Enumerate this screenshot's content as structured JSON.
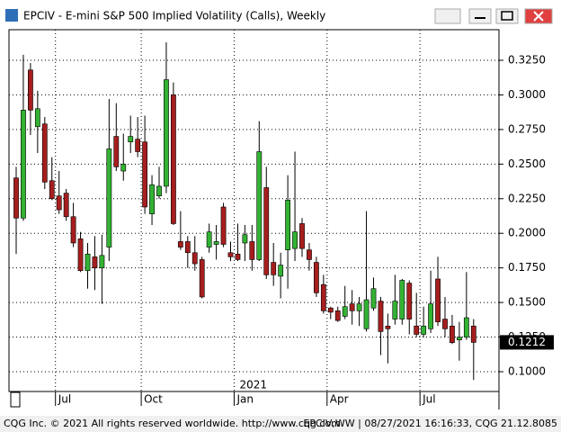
{
  "window": {
    "title": "EPCIV - E-mini S&P 500 Implied Volatility (Calls), Weekly"
  },
  "chart_data": {
    "type": "candlestick",
    "categories": [
      null,
      null,
      null,
      null,
      null,
      null,
      "Jul",
      null,
      null,
      null,
      null,
      null,
      null,
      null,
      null,
      null,
      null,
      null,
      "Oct",
      null,
      null,
      null,
      null,
      null,
      null,
      null,
      null,
      null,
      null,
      null,
      null,
      "Jan",
      null,
      null,
      null,
      null,
      null,
      null,
      null,
      null,
      null,
      null,
      null,
      null,
      "Apr",
      null,
      null,
      null,
      null,
      null,
      null,
      null,
      null,
      null,
      null,
      null,
      null,
      "Jul",
      null,
      null,
      null,
      null,
      null,
      null,
      null
    ],
    "year_label": "2021",
    "open": [
      0.24,
      0.211,
      0.318,
      0.277,
      0.279,
      0.238,
      0.227,
      0.229,
      0.212,
      0.196,
      0.173,
      0.183,
      0.175,
      0.19,
      0.27,
      0.245,
      0.266,
      0.268,
      0.266,
      0.214,
      0.227,
      0.234,
      0.3,
      0.194,
      0.194,
      0.186,
      0.181,
      0.19,
      0.192,
      0.219,
      0.186,
      0.185,
      0.193,
      0.194,
      0.181,
      0.233,
      0.179,
      0.169,
      0.188,
      0.189,
      0.207,
      0.188,
      0.179,
      0.163,
      0.146,
      0.144,
      0.14,
      0.149,
      0.144,
      0.131,
      0.146,
      0.151,
      0.133,
      0.138,
      0.138,
      0.164,
      0.133,
      0.127,
      0.131,
      0.167,
      0.138,
      0.133,
      0.123,
      0.125,
      0.133
    ],
    "high": [
      0.248,
      0.329,
      0.323,
      0.303,
      0.284,
      0.255,
      0.245,
      0.232,
      0.222,
      0.201,
      0.193,
      0.198,
      0.199,
      0.297,
      0.294,
      0.272,
      0.285,
      0.284,
      0.285,
      0.242,
      0.248,
      0.338,
      0.309,
      0.216,
      0.198,
      0.198,
      0.183,
      0.207,
      0.206,
      0.222,
      0.194,
      0.207,
      0.206,
      0.206,
      0.281,
      0.248,
      0.193,
      0.186,
      0.242,
      0.259,
      0.211,
      0.193,
      0.183,
      0.17,
      0.147,
      0.147,
      0.162,
      0.159,
      0.154,
      0.216,
      0.168,
      0.154,
      0.142,
      0.17,
      0.167,
      0.166,
      0.157,
      0.147,
      0.173,
      0.183,
      0.154,
      0.141,
      0.136,
      0.172,
      0.138
    ],
    "low": [
      0.185,
      0.209,
      0.271,
      0.258,
      0.232,
      0.224,
      0.214,
      0.209,
      0.19,
      0.172,
      0.16,
      0.159,
      0.149,
      0.18,
      0.245,
      0.238,
      0.258,
      0.255,
      0.214,
      0.206,
      0.225,
      0.229,
      0.206,
      0.188,
      0.175,
      0.173,
      0.153,
      0.186,
      0.181,
      0.19,
      0.18,
      0.18,
      0.18,
      0.173,
      0.18,
      0.167,
      0.162,
      0.153,
      0.16,
      0.18,
      0.183,
      0.173,
      0.154,
      0.142,
      0.138,
      0.136,
      0.138,
      0.134,
      0.133,
      0.129,
      0.144,
      0.112,
      0.106,
      0.134,
      0.134,
      0.127,
      0.125,
      0.125,
      0.128,
      0.133,
      0.125,
      0.12,
      0.108,
      0.123,
      0.094
    ],
    "close": [
      0.211,
      0.289,
      0.289,
      0.29,
      0.237,
      0.225,
      0.217,
      0.212,
      0.193,
      0.173,
      0.185,
      0.175,
      0.184,
      0.261,
      0.248,
      0.25,
      0.27,
      0.259,
      0.219,
      0.235,
      0.234,
      0.311,
      0.207,
      0.19,
      0.186,
      0.178,
      0.154,
      0.201,
      0.194,
      0.192,
      0.183,
      0.181,
      0.199,
      0.181,
      0.259,
      0.17,
      0.17,
      0.177,
      0.224,
      0.201,
      0.189,
      0.181,
      0.157,
      0.144,
      0.143,
      0.137,
      0.147,
      0.144,
      0.149,
      0.152,
      0.16,
      0.129,
      0.131,
      0.151,
      0.166,
      0.138,
      0.127,
      0.133,
      0.149,
      0.136,
      0.131,
      0.121,
      0.125,
      0.139,
      0.1212
    ],
    "up_color": "#33b233",
    "down_color": "#a61e1e",
    "ylim": [
      0.0857,
      0.3471
    ],
    "yticks": [
      {
        "value": 0.1,
        "label": "0.1000"
      },
      {
        "value": 0.125,
        "label": "0.1250"
      },
      {
        "value": 0.15,
        "label": "0.1500"
      },
      {
        "value": 0.175,
        "label": "0.1750"
      },
      {
        "value": 0.2,
        "label": "0.2000"
      },
      {
        "value": 0.225,
        "label": "0.2250"
      },
      {
        "value": 0.25,
        "label": "0.2500"
      },
      {
        "value": 0.275,
        "label": "0.2750"
      },
      {
        "value": 0.3,
        "label": "0.3000"
      },
      {
        "value": 0.325,
        "label": "0.3250"
      }
    ],
    "grid": true
  },
  "footer": {
    "left": "CQG Inc. © 2021 All rights reserved worldwide. http://www.cqg.com",
    "right": "EPCIV,WW | 08/27/2021 16:16:33, CQG 21.12.8085"
  }
}
